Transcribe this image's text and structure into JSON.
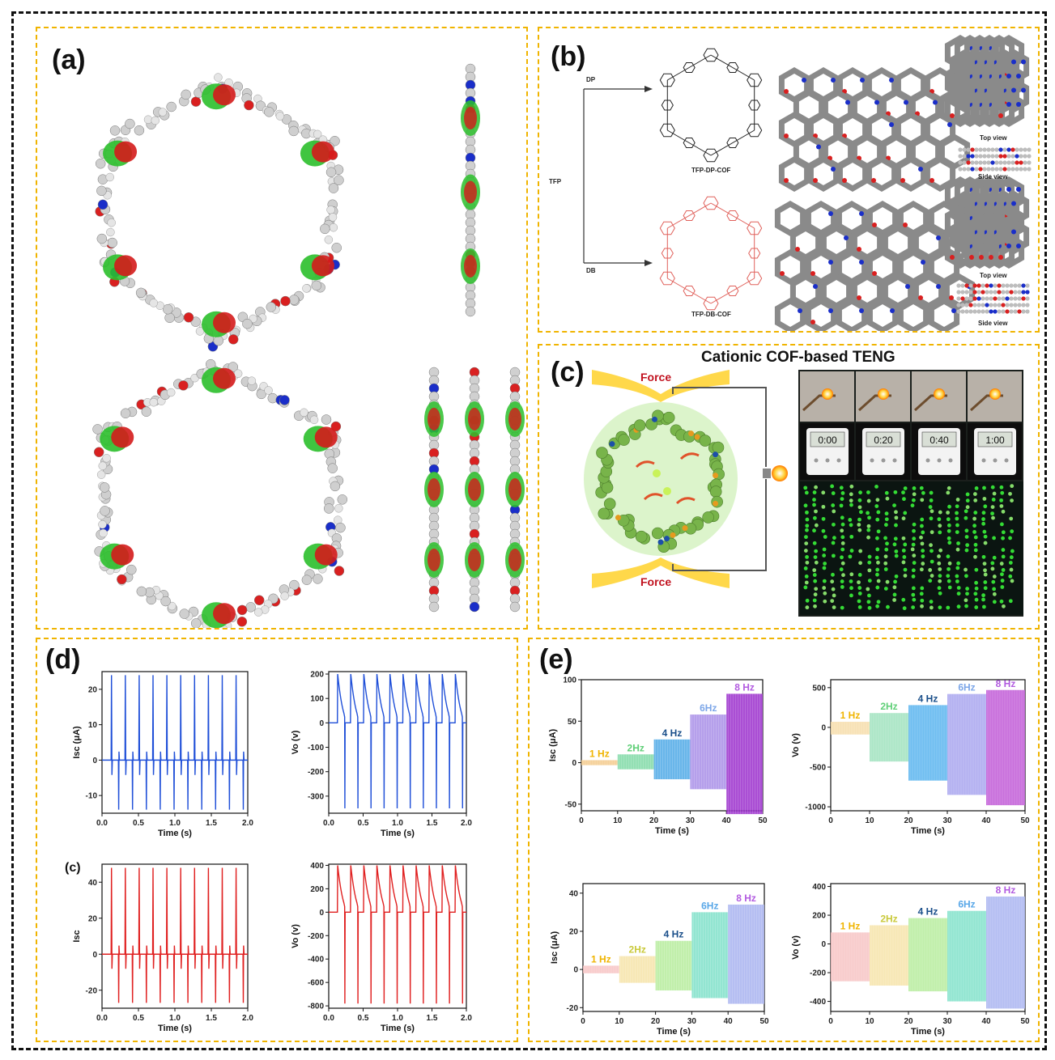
{
  "panels": {
    "a": {
      "label": "(a)"
    },
    "b": {
      "label": "(b)",
      "precursors": {
        "dp": "DP",
        "tfp": "TFP",
        "db": "DB"
      },
      "cof_top": "TFP-DP-COF",
      "cof_bottom": "TFP-DB-COF",
      "views": {
        "top1": "Top view",
        "side1": "Side view",
        "top2": "Top view",
        "side2": "Side view"
      }
    },
    "c": {
      "label": "(c)",
      "title": "Cationic COF-based TENG",
      "force_top": "Force",
      "force_bottom": "Force",
      "timers": [
        "0:00",
        "0:20",
        "0:40",
        "1:00"
      ]
    },
    "d": {
      "label": "(d)",
      "sublabel": "(c)"
    },
    "e": {
      "label": "(e)"
    }
  },
  "colors": {
    "blue": "#1f4fd8",
    "red": "#e02020",
    "panel_border": "#f0b400"
  },
  "chart_data": [
    {
      "id": "d1",
      "type": "line",
      "xlabel": "Time (s)",
      "ylabel": "Isc (μA)",
      "xlim": [
        0,
        2.0
      ],
      "ylim": [
        -15,
        25
      ],
      "xticks": [
        "0.0",
        "0.5",
        "1.0",
        "1.5",
        "2.0"
      ],
      "yticks": [
        "-10",
        "0",
        "10",
        "20"
      ],
      "ytick_vals": [
        -10,
        0,
        10,
        20
      ],
      "series": [
        {
          "color": "#1f4fd8",
          "pulse_period": 0.19,
          "first_pulse": 0.13,
          "peak": 24,
          "trough": -14,
          "count": 10,
          "kind": "current"
        }
      ]
    },
    {
      "id": "d2",
      "type": "line",
      "xlabel": "Time (s)",
      "ylabel": "Vo (v)",
      "xlim": [
        0,
        2.0
      ],
      "ylim": [
        -370,
        210
      ],
      "xticks": [
        "0.0",
        "0.5",
        "1.0",
        "1.5",
        "2.0"
      ],
      "yticks": [
        "-300",
        "-200",
        "-100",
        "0",
        "100",
        "200"
      ],
      "ytick_vals": [
        -300,
        -200,
        -100,
        0,
        100,
        200
      ],
      "series": [
        {
          "color": "#1f4fd8",
          "pulse_period": 0.19,
          "first_pulse": 0.13,
          "peak": 200,
          "trough": -350,
          "count": 10,
          "kind": "voltage"
        }
      ]
    },
    {
      "id": "d3",
      "type": "line",
      "xlabel": "Time (s)",
      "ylabel": "Isc",
      "xlim": [
        0,
        2.0
      ],
      "ylim": [
        -30,
        50
      ],
      "xticks": [
        "0.0",
        "0.5",
        "1.0",
        "1.5",
        "2.0"
      ],
      "yticks": [
        "-20",
        "0",
        "20",
        "40"
      ],
      "ytick_vals": [
        -20,
        0,
        20,
        40
      ],
      "series": [
        {
          "color": "#e02020",
          "pulse_period": 0.19,
          "first_pulse": 0.13,
          "peak": 48,
          "trough": -27,
          "count": 10,
          "kind": "current"
        }
      ]
    },
    {
      "id": "d4",
      "type": "line",
      "xlabel": "Time (s)",
      "ylabel": "Vo (v)",
      "xlim": [
        0,
        2.0
      ],
      "ylim": [
        -820,
        410
      ],
      "xticks": [
        "0.0",
        "0.5",
        "1.0",
        "1.5",
        "2.0"
      ],
      "yticks": [
        "-800",
        "-600",
        "-400",
        "-200",
        "0",
        "200",
        "400"
      ],
      "ytick_vals": [
        -800,
        -600,
        -400,
        -200,
        0,
        200,
        400
      ],
      "series": [
        {
          "color": "#e02020",
          "pulse_period": 0.19,
          "first_pulse": 0.13,
          "peak": 400,
          "trough": -780,
          "count": 10,
          "kind": "voltage"
        }
      ]
    },
    {
      "id": "e1",
      "type": "area",
      "xlabel": "Time (s)",
      "ylabel": "Isc (μA)",
      "xlim": [
        0,
        50
      ],
      "ylim": [
        -58,
        100
      ],
      "xticks": [
        "0",
        "10",
        "20",
        "30",
        "40",
        "50"
      ],
      "yticks": [
        "-50",
        "0",
        "50",
        "100"
      ],
      "ytick_vals": [
        -50,
        0,
        50,
        100
      ],
      "bands": [
        {
          "x": [
            0,
            10
          ],
          "hi": 3,
          "lo": -3,
          "color": "#f3c98a",
          "label": "1 Hz",
          "lc": "#f0b400"
        },
        {
          "x": [
            10,
            20
          ],
          "hi": 10,
          "lo": -8,
          "color": "#7fd9a6",
          "label": "2Hz",
          "lc": "#5fcf77"
        },
        {
          "x": [
            20,
            30
          ],
          "hi": 28,
          "lo": -20,
          "color": "#4fa9e6",
          "label": "4 Hz",
          "lc": "#1a4f8a"
        },
        {
          "x": [
            30,
            40
          ],
          "hi": 58,
          "lo": -32,
          "color": "#a88ee8",
          "label": "6Hz",
          "lc": "#7ca6e8"
        },
        {
          "x": [
            40,
            50
          ],
          "hi": 83,
          "lo": -62,
          "color": "#9b2fcc",
          "label": "8 Hz",
          "lc": "#b25be0"
        }
      ]
    },
    {
      "id": "e2",
      "type": "area",
      "xlabel": "Time (s)",
      "ylabel": "Vo (v)",
      "xlim": [
        0,
        50
      ],
      "ylim": [
        -1050,
        600
      ],
      "xticks": [
        "0",
        "10",
        "20",
        "30",
        "40",
        "50"
      ],
      "yticks": [
        "-1000",
        "-500",
        "0",
        "500"
      ],
      "ytick_vals": [
        -1000,
        -500,
        0,
        500
      ],
      "bands": [
        {
          "x": [
            0,
            10
          ],
          "hi": 70,
          "lo": -90,
          "color": "#f6dca8",
          "label": "1 Hz",
          "lc": "#f0b400"
        },
        {
          "x": [
            10,
            20
          ],
          "hi": 180,
          "lo": -430,
          "color": "#9ee2bd",
          "label": "2Hz",
          "lc": "#5fcf77"
        },
        {
          "x": [
            20,
            30
          ],
          "hi": 280,
          "lo": -670,
          "color": "#57b3ee",
          "label": "4 Hz",
          "lc": "#1a4f8a"
        },
        {
          "x": [
            30,
            40
          ],
          "hi": 420,
          "lo": -850,
          "color": "#a7a3ee",
          "label": "6Hz",
          "lc": "#7ca6e8"
        },
        {
          "x": [
            40,
            50
          ],
          "hi": 470,
          "lo": -980,
          "color": "#c057d6",
          "label": "8 Hz",
          "lc": "#b25be0"
        }
      ]
    },
    {
      "id": "e3",
      "type": "area",
      "xlabel": "Time (s)",
      "ylabel": "Isc (μA)",
      "xlim": [
        0,
        50
      ],
      "ylim": [
        -22,
        45
      ],
      "xticks": [
        "0",
        "10",
        "20",
        "30",
        "40",
        "50"
      ],
      "yticks": [
        "-20",
        "0",
        "20",
        "40"
      ],
      "ytick_vals": [
        -20,
        0,
        20,
        40
      ],
      "bands": [
        {
          "x": [
            0,
            10
          ],
          "hi": 2,
          "lo": -2,
          "color": "#f7c3c3",
          "label": "1 Hz",
          "lc": "#f0b400"
        },
        {
          "x": [
            10,
            20
          ],
          "hi": 7,
          "lo": -7,
          "color": "#f6e3a8",
          "label": "2Hz",
          "lc": "#c9c93a"
        },
        {
          "x": [
            20,
            30
          ],
          "hi": 15,
          "lo": -11,
          "color": "#b6ec9c",
          "label": "4 Hz",
          "lc": "#1a4f8a"
        },
        {
          "x": [
            30,
            40
          ],
          "hi": 30,
          "lo": -15,
          "color": "#7fe0c9",
          "label": "6Hz",
          "lc": "#5aa8e8"
        },
        {
          "x": [
            40,
            50
          ],
          "hi": 34,
          "lo": -18,
          "color": "#a8b3f0",
          "label": "8 Hz",
          "lc": "#b25be0"
        }
      ]
    },
    {
      "id": "e4",
      "type": "area",
      "xlabel": "Time (s)",
      "ylabel": "Vo (v)",
      "xlim": [
        0,
        50
      ],
      "ylim": [
        -470,
        420
      ],
      "xticks": [
        "0",
        "10",
        "20",
        "30",
        "40",
        "50"
      ],
      "yticks": [
        "-400",
        "-200",
        "0",
        "200",
        "400"
      ],
      "ytick_vals": [
        -400,
        -200,
        0,
        200,
        400
      ],
      "bands": [
        {
          "x": [
            0,
            10
          ],
          "hi": 80,
          "lo": -260,
          "color": "#f7c3c3",
          "label": "1 Hz",
          "lc": "#f0b400"
        },
        {
          "x": [
            10,
            20
          ],
          "hi": 130,
          "lo": -290,
          "color": "#f6e3a8",
          "label": "2Hz",
          "lc": "#c9c93a"
        },
        {
          "x": [
            20,
            30
          ],
          "hi": 180,
          "lo": -330,
          "color": "#b6ec9c",
          "label": "4 Hz",
          "lc": "#1a4f8a"
        },
        {
          "x": [
            30,
            40
          ],
          "hi": 230,
          "lo": -400,
          "color": "#7fe0c9",
          "label": "6Hz",
          "lc": "#5aa8e8"
        },
        {
          "x": [
            40,
            50
          ],
          "hi": 330,
          "lo": -450,
          "color": "#a8b3f0",
          "label": "8 Hz",
          "lc": "#b25be0"
        }
      ]
    }
  ]
}
